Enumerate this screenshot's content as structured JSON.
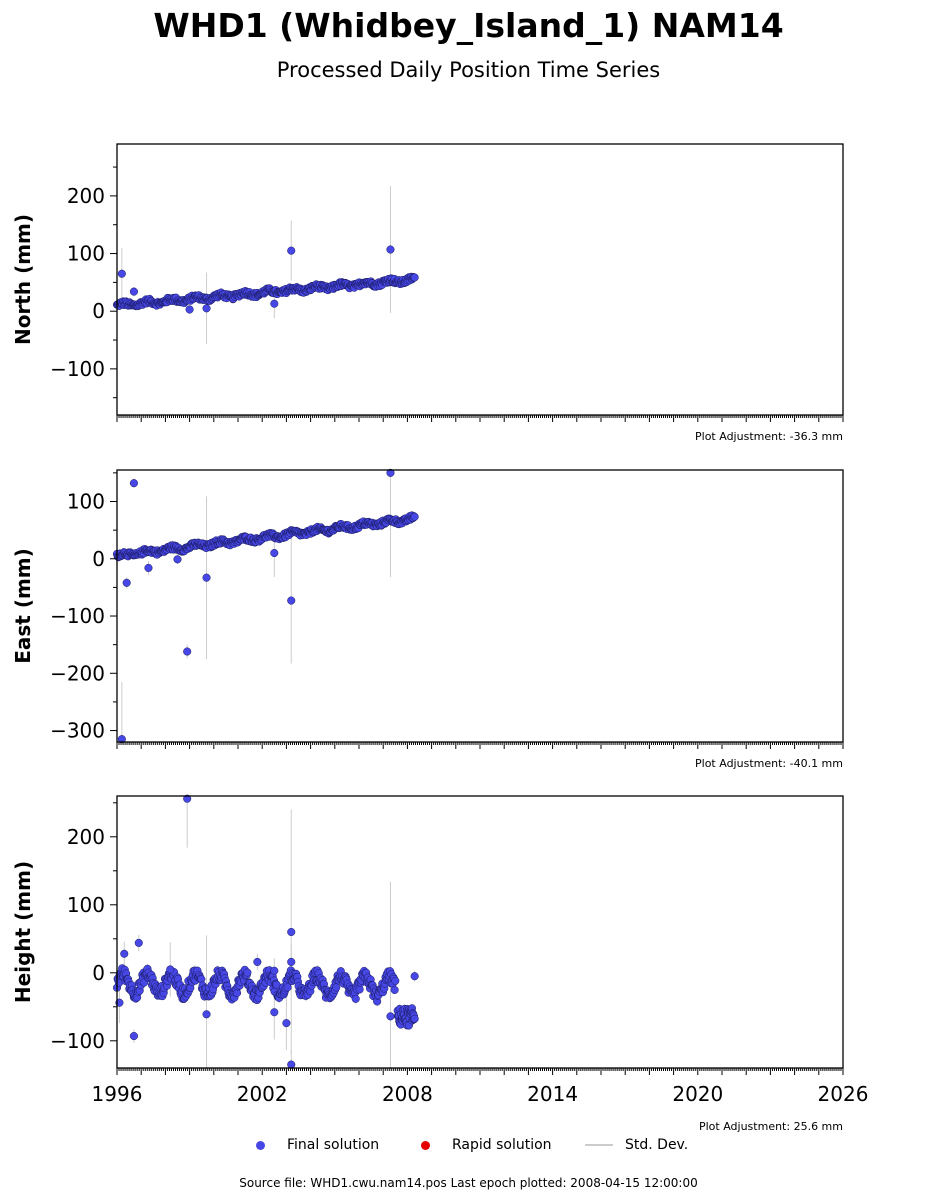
{
  "title": "WHD1 (Whidbey_Island_1) NAM14",
  "subtitle": "Processed Daily Position Time Series",
  "footer": "Source file: WHD1.cwu.nam14.pos  Last epoch plotted: 2008-04-15 12:00:00",
  "legend": {
    "final": "Final solution",
    "rapid": "Rapid solution",
    "stddev": "Std. Dev."
  },
  "colors": {
    "final": "#4747e6",
    "rapid": "#e60000",
    "stddev": "#cccccc"
  },
  "chart_data": [
    {
      "type": "scatter",
      "ylabel": "North (mm)",
      "adjustment": "Plot Adjustment: -36.3 mm",
      "xlim": [
        1996,
        2026
      ],
      "ylim": [
        -180,
        290
      ],
      "yticks": [
        -100,
        0,
        100,
        200
      ],
      "trend": {
        "x": [
          1996.0,
          2008.3
        ],
        "y": [
          10,
          55
        ]
      },
      "outliers": [
        {
          "x": 1996.2,
          "y": 65,
          "err": 45
        },
        {
          "x": 1996.7,
          "y": 34,
          "err": 8
        },
        {
          "x": 1999.0,
          "y": 3,
          "err": 8
        },
        {
          "x": 1999.7,
          "y": 5,
          "err": 62
        },
        {
          "x": 2002.5,
          "y": 13,
          "err": 25
        },
        {
          "x": 2003.2,
          "y": 105,
          "err": 52
        },
        {
          "x": 2007.3,
          "y": 107,
          "err": 110
        }
      ]
    },
    {
      "type": "scatter",
      "ylabel": "East (mm)",
      "adjustment": "Plot Adjustment: -40.1 mm",
      "xlim": [
        1996,
        2026
      ],
      "ylim": [
        -320,
        155
      ],
      "yticks": [
        -300,
        -200,
        -100,
        0,
        100
      ],
      "trend": {
        "x": [
          1996.0,
          2008.3
        ],
        "y": [
          5,
          70
        ]
      },
      "outliers": [
        {
          "x": 1996.2,
          "y": -315,
          "err": 100
        },
        {
          "x": 1996.4,
          "y": -42,
          "err": 10
        },
        {
          "x": 1996.7,
          "y": 132,
          "err": 8
        },
        {
          "x": 1997.3,
          "y": -16,
          "err": 12
        },
        {
          "x": 1998.5,
          "y": -1,
          "err": 8
        },
        {
          "x": 1998.9,
          "y": -162,
          "err": 12
        },
        {
          "x": 1999.7,
          "y": -33,
          "err": 142
        },
        {
          "x": 2002.5,
          "y": 10,
          "err": 42
        },
        {
          "x": 2003.2,
          "y": -73,
          "err": 110
        },
        {
          "x": 2007.3,
          "y": 150,
          "err": 182
        }
      ]
    },
    {
      "type": "scatter",
      "ylabel": "Height (mm)",
      "adjustment": "Plot Adjustment: 25.6 mm",
      "xlim": [
        1996,
        2026
      ],
      "xticks": [
        1996,
        2002,
        2008,
        2014,
        2020,
        2026
      ],
      "ylim": [
        -140,
        260
      ],
      "yticks": [
        -100,
        0,
        100,
        200
      ],
      "trend": {
        "x": [
          1996.0,
          2007.5
        ],
        "y": [
          -15,
          -20
        ]
      },
      "step": {
        "x": 2007.6,
        "y": -65
      },
      "outliers": [
        {
          "x": 1996.1,
          "y": -44,
          "err": 30
        },
        {
          "x": 1996.3,
          "y": 28,
          "err": 18
        },
        {
          "x": 1996.7,
          "y": -93,
          "err": 10
        },
        {
          "x": 1996.9,
          "y": 44,
          "err": 12
        },
        {
          "x": 1998.2,
          "y": 5,
          "err": 40
        },
        {
          "x": 1998.9,
          "y": 256,
          "err": 72
        },
        {
          "x": 1999.7,
          "y": -61,
          "err": 116
        },
        {
          "x": 2001.8,
          "y": 16,
          "err": 12
        },
        {
          "x": 2002.5,
          "y": -58,
          "err": 40
        },
        {
          "x": 2002.5,
          "y": 3,
          "err": 18
        },
        {
          "x": 2003.0,
          "y": -74,
          "err": 40
        },
        {
          "x": 2003.2,
          "y": 60,
          "err": 180
        },
        {
          "x": 2003.2,
          "y": 16,
          "err": 25
        },
        {
          "x": 2003.2,
          "y": -135,
          "err": 20
        },
        {
          "x": 2007.3,
          "y": -64,
          "err": 198
        },
        {
          "x": 2008.3,
          "y": -5,
          "err": 8
        }
      ]
    }
  ]
}
